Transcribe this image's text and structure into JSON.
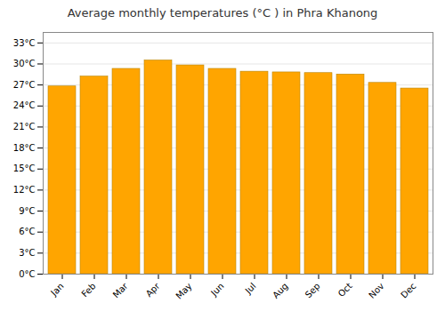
{
  "chart_data": {
    "type": "bar",
    "title": "Average monthly temperatures (°C ) in Phra Khanong",
    "categories": [
      "Jan",
      "Feb",
      "Mar",
      "Apr",
      "May",
      "Jun",
      "Jul",
      "Aug",
      "Sep",
      "Oct",
      "Nov",
      "Dec"
    ],
    "values": [
      26.8,
      28.2,
      29.3,
      30.5,
      29.8,
      29.3,
      28.9,
      28.8,
      28.7,
      28.5,
      27.3,
      26.5
    ],
    "color": "#FFA500",
    "ylim": [
      0,
      34.5
    ],
    "yticks": [
      {
        "value": 0,
        "label": "0°C"
      },
      {
        "value": 3,
        "label": "3°C"
      },
      {
        "value": 6,
        "label": "6°C"
      },
      {
        "value": 9,
        "label": "9°C"
      },
      {
        "value": 12,
        "label": "12°C"
      },
      {
        "value": 15,
        "label": "15°C"
      },
      {
        "value": 18,
        "label": "18°C"
      },
      {
        "value": 21,
        "label": "21°C"
      },
      {
        "value": 24,
        "label": "24°C"
      },
      {
        "value": 27,
        "label": "27°C"
      },
      {
        "value": 30,
        "label": "30°C"
      },
      {
        "value": 33,
        "label": "33°C"
      }
    ],
    "grid": true
  }
}
